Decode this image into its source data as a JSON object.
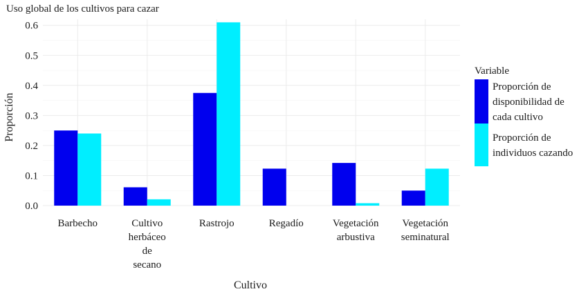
{
  "chart_data": {
    "type": "bar",
    "title": "Uso global de los cultivos para cazar",
    "xlabel": "Cultivo",
    "ylabel": "Proporción",
    "ylim": [
      0,
      0.62
    ],
    "yticks": [
      "0.0",
      "0.1",
      "0.2",
      "0.3",
      "0.4",
      "0.5",
      "0.6"
    ],
    "grid": true,
    "legend_position": "right",
    "legend_title": "Variable",
    "categories": [
      [
        "Barbecho"
      ],
      [
        "Cultivo",
        "herbáceo",
        "de",
        "secano"
      ],
      [
        "Rastrojo"
      ],
      [
        "Regadío"
      ],
      [
        "Vegetación",
        "arbustiva"
      ],
      [
        "Vegetación",
        "seminatural"
      ]
    ],
    "series": [
      {
        "name": [
          "Proporción de",
          "disponibilidad de",
          "cada cultivo"
        ],
        "color": "#0000ee",
        "values": [
          0.25,
          0.061,
          0.375,
          0.123,
          0.142,
          0.05
        ]
      },
      {
        "name": [
          "Proporción de",
          "individuos cazando"
        ],
        "color": "#00eeff",
        "values": [
          0.24,
          0.021,
          0.61,
          0.0,
          0.008,
          0.123
        ]
      }
    ]
  }
}
